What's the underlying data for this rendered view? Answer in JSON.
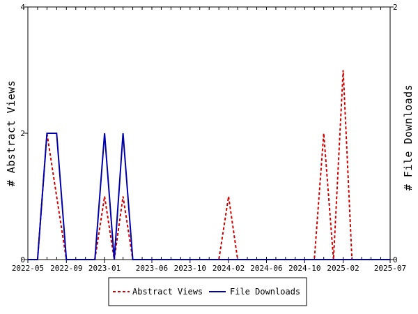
{
  "chart_data": {
    "type": "line",
    "title": "",
    "ylabel_left": "# Abstract Views",
    "ylabel_right": "# File Downloads",
    "x_range": [
      "2022-05-01",
      "2025-07-01"
    ],
    "x_ticks": [
      "2022-05",
      "2022-09",
      "2023-01",
      "2023-06",
      "2023-10",
      "2024-02",
      "2024-06",
      "2024-10",
      "2025-02",
      "2025-07"
    ],
    "x_tick_dates": [
      "2022-05-01",
      "2022-09-01",
      "2023-01-01",
      "2023-06-01",
      "2023-10-01",
      "2024-02-01",
      "2024-06-01",
      "2024-10-01",
      "2025-02-01",
      "2025-07-01"
    ],
    "y_left_range": [
      0,
      4
    ],
    "y_left_ticks": [
      "0",
      "2",
      "4"
    ],
    "y_right_range": [
      0,
      2
    ],
    "y_right_ticks": [
      "0",
      "2"
    ],
    "grid": false,
    "legend_position": "bottom-center",
    "series": [
      {
        "name": "Abstract Views",
        "axis": "left",
        "color": "#cc0000",
        "dash": "dashed",
        "points": [
          [
            "2022-05-01",
            0
          ],
          [
            "2022-06-01",
            0
          ],
          [
            "2022-07-01",
            2
          ],
          [
            "2022-08-01",
            1
          ],
          [
            "2022-09-01",
            0
          ],
          [
            "2022-10-01",
            0
          ],
          [
            "2022-11-01",
            0
          ],
          [
            "2022-12-01",
            0
          ],
          [
            "2023-01-01",
            1
          ],
          [
            "2023-02-01",
            0
          ],
          [
            "2023-03-01",
            1
          ],
          [
            "2023-04-01",
            0
          ],
          [
            "2023-05-01",
            0
          ],
          [
            "2023-06-01",
            0
          ],
          [
            "2023-07-01",
            0
          ],
          [
            "2023-08-01",
            0
          ],
          [
            "2023-09-01",
            0
          ],
          [
            "2023-10-01",
            0
          ],
          [
            "2023-11-01",
            0
          ],
          [
            "2023-12-01",
            0
          ],
          [
            "2024-01-01",
            0
          ],
          [
            "2024-02-01",
            1
          ],
          [
            "2024-03-01",
            0
          ],
          [
            "2024-04-01",
            0
          ],
          [
            "2024-05-01",
            0
          ],
          [
            "2024-06-01",
            0
          ],
          [
            "2024-07-01",
            0
          ],
          [
            "2024-08-01",
            0
          ],
          [
            "2024-09-01",
            0
          ],
          [
            "2024-10-01",
            0
          ],
          [
            "2024-11-01",
            0
          ],
          [
            "2024-12-01",
            2
          ],
          [
            "2025-01-01",
            0
          ],
          [
            "2025-02-01",
            3
          ],
          [
            "2025-03-01",
            0
          ],
          [
            "2025-04-01",
            0
          ],
          [
            "2025-05-01",
            0
          ],
          [
            "2025-06-01",
            0
          ],
          [
            "2025-07-01",
            0
          ]
        ]
      },
      {
        "name": "File Downloads",
        "axis": "right",
        "color": "#0000aa",
        "dash": "solid",
        "points": [
          [
            "2022-05-01",
            0
          ],
          [
            "2022-06-01",
            0
          ],
          [
            "2022-07-01",
            1
          ],
          [
            "2022-08-01",
            1
          ],
          [
            "2022-09-01",
            0
          ],
          [
            "2022-10-01",
            0
          ],
          [
            "2022-11-01",
            0
          ],
          [
            "2022-12-01",
            0
          ],
          [
            "2023-01-01",
            1
          ],
          [
            "2023-02-01",
            0
          ],
          [
            "2023-03-01",
            1
          ],
          [
            "2023-04-01",
            0
          ],
          [
            "2023-05-01",
            0
          ],
          [
            "2023-06-01",
            0
          ],
          [
            "2023-07-01",
            0
          ],
          [
            "2023-08-01",
            0
          ],
          [
            "2023-09-01",
            0
          ],
          [
            "2023-10-01",
            0
          ],
          [
            "2023-11-01",
            0
          ],
          [
            "2023-12-01",
            0
          ],
          [
            "2024-01-01",
            0
          ],
          [
            "2024-02-01",
            0
          ],
          [
            "2024-03-01",
            0
          ],
          [
            "2024-04-01",
            0
          ],
          [
            "2024-05-01",
            0
          ],
          [
            "2024-06-01",
            0
          ],
          [
            "2024-07-01",
            0
          ],
          [
            "2024-08-01",
            0
          ],
          [
            "2024-09-01",
            0
          ],
          [
            "2024-10-01",
            0
          ],
          [
            "2024-11-01",
            0
          ],
          [
            "2024-12-01",
            0
          ],
          [
            "2025-01-01",
            0
          ],
          [
            "2025-02-01",
            0
          ],
          [
            "2025-03-01",
            0
          ],
          [
            "2025-04-01",
            0
          ],
          [
            "2025-05-01",
            0
          ],
          [
            "2025-06-01",
            0
          ],
          [
            "2025-07-01",
            0
          ]
        ]
      }
    ]
  }
}
